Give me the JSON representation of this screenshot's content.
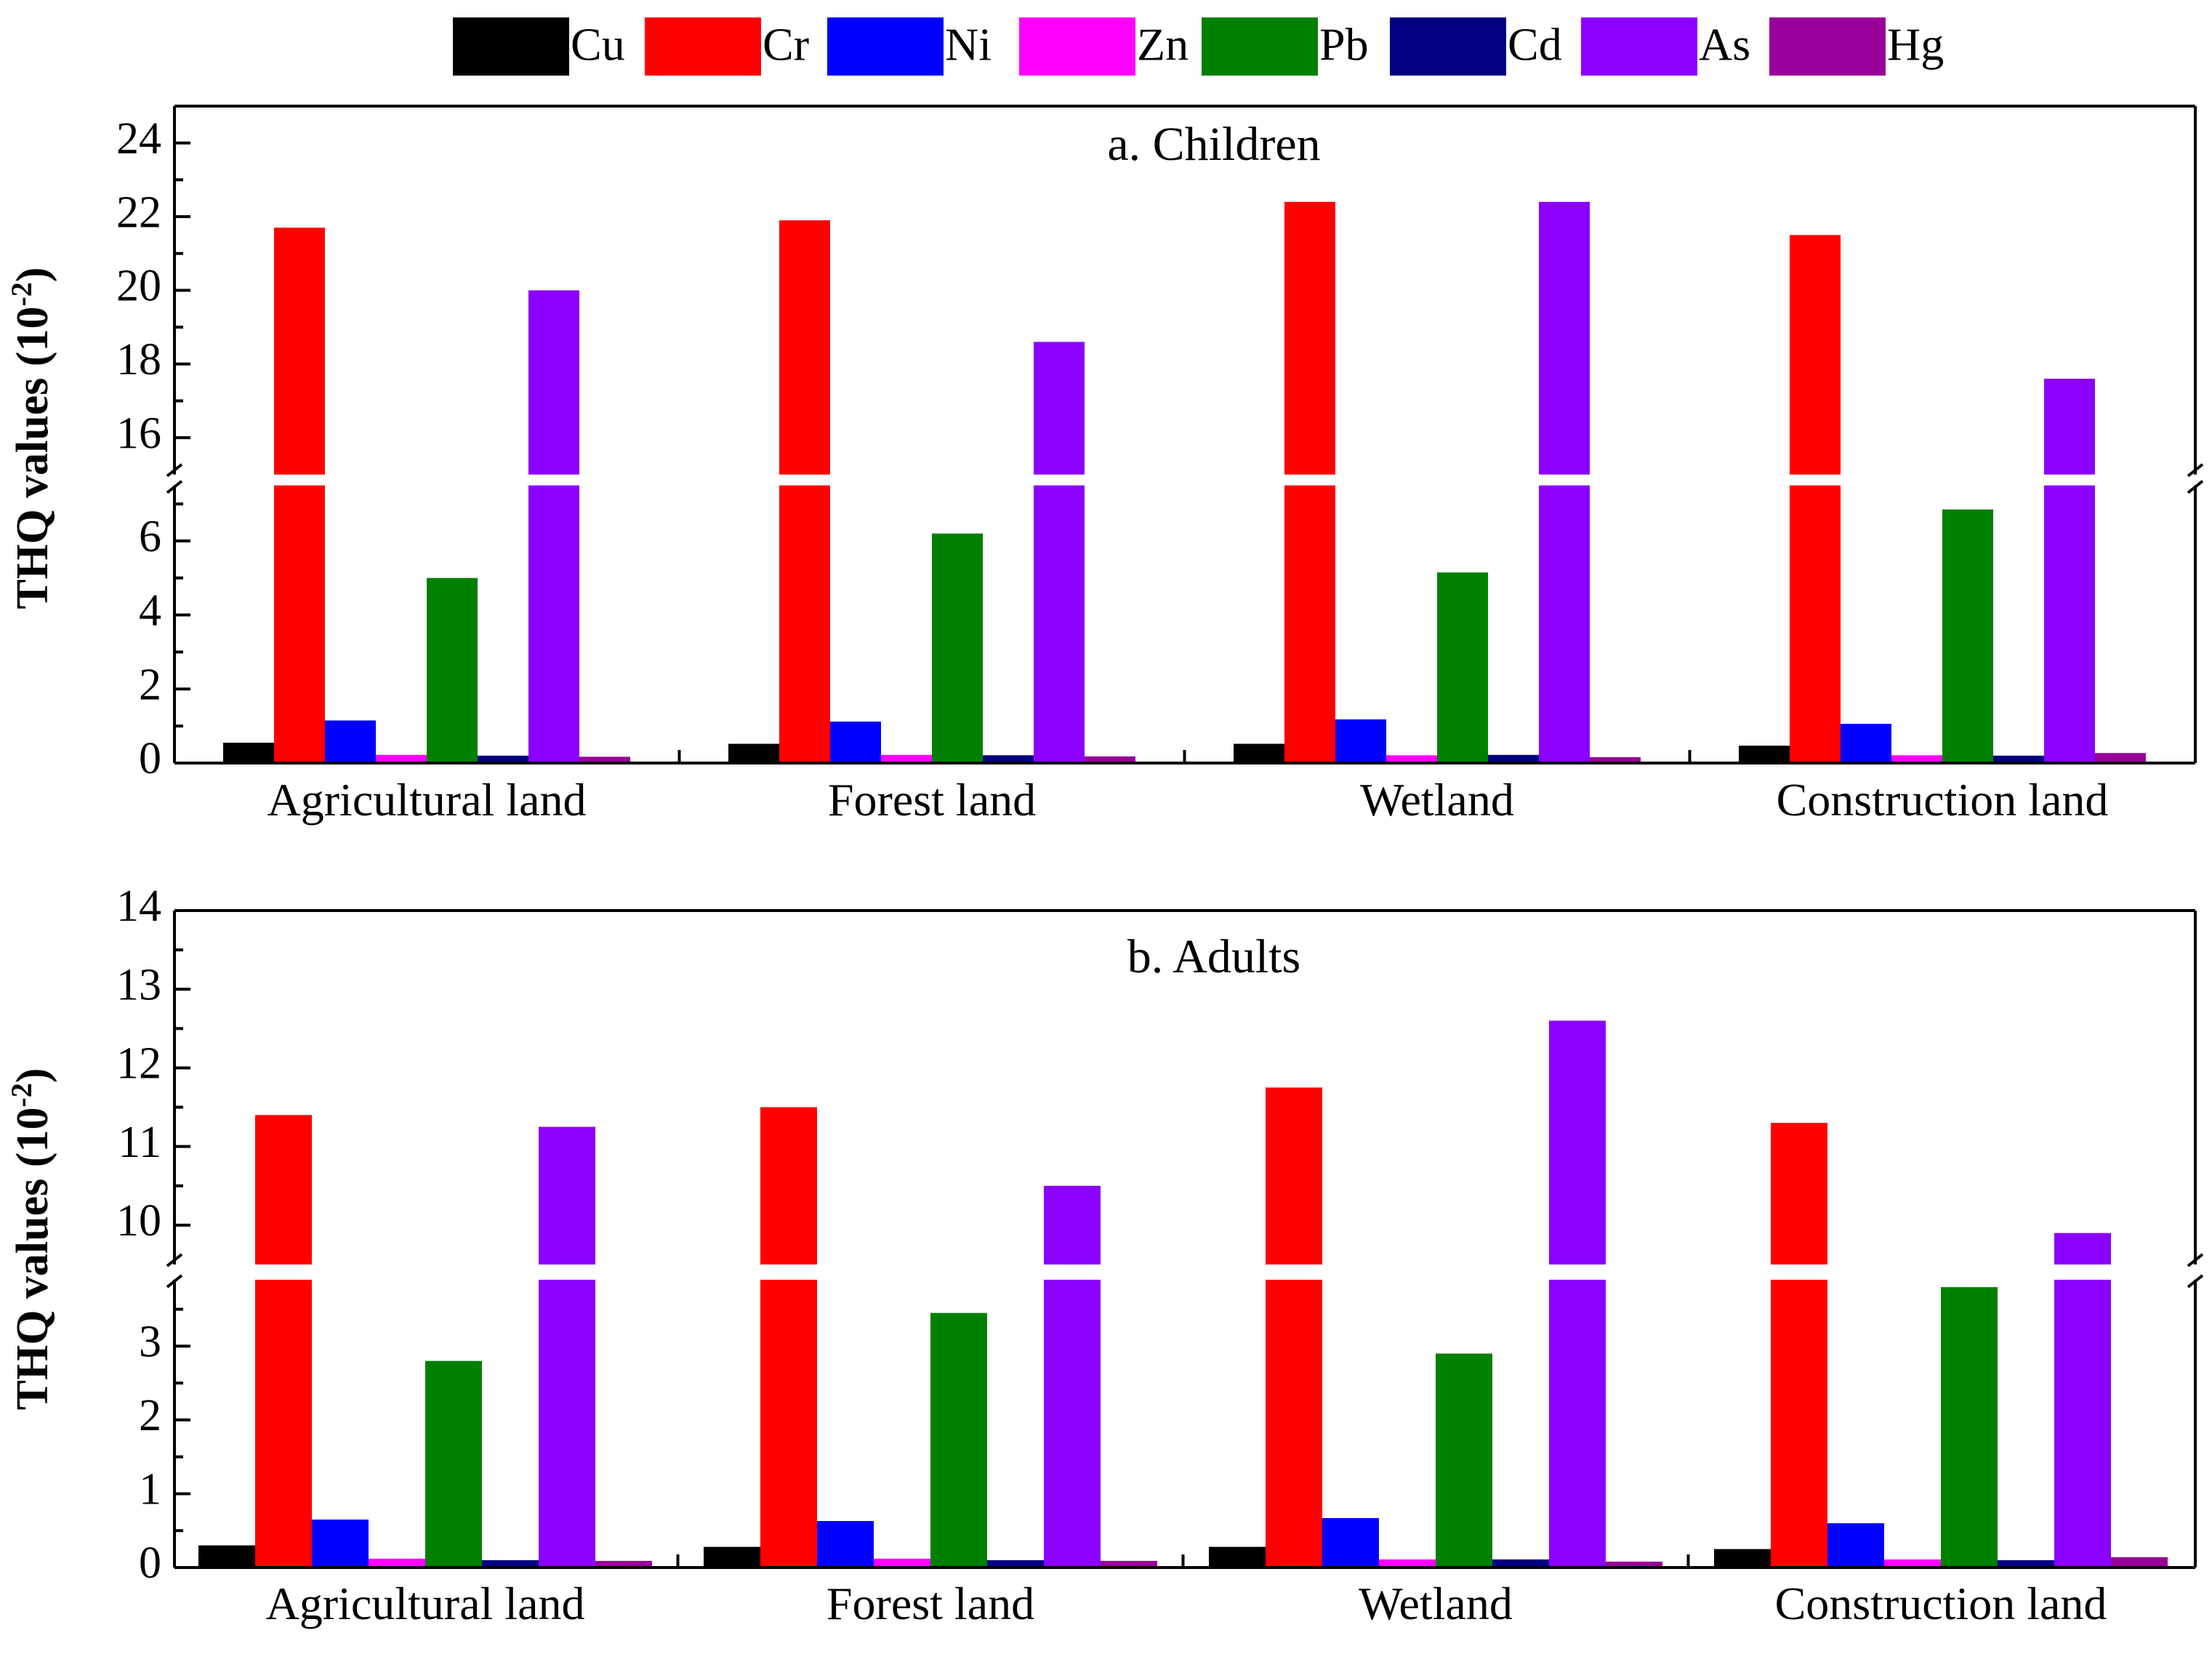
{
  "legend": {
    "entries": [
      {
        "name": "Cu",
        "color": "#000000"
      },
      {
        "name": "Cr",
        "color": "#ff0000"
      },
      {
        "name": "Ni",
        "color": "#0000ff"
      },
      {
        "name": "Zn",
        "color": "#ff00ff"
      },
      {
        "name": "Pb",
        "color": "#008000"
      },
      {
        "name": "Cd",
        "color": "#000080"
      },
      {
        "name": "As",
        "color": "#8b00ff"
      },
      {
        "name": "Hg",
        "color": "#990099"
      }
    ],
    "placement": "top-center"
  },
  "chart_data": [
    {
      "type": "bar",
      "title": "a. Children",
      "ylabel": "THQ values (10",
      "ylabel_sup": "-2",
      "ylabel_close": ")",
      "xlabel": "",
      "categories": [
        "Agricultural land",
        "Forest land",
        "Wetland",
        "Construction land"
      ],
      "axis_break": {
        "lower_range": [
          0,
          7.5
        ],
        "upper_range": [
          15,
          25
        ]
      },
      "lower_ticks": [
        "0",
        "2",
        "4",
        "6"
      ],
      "upper_ticks": [
        "16",
        "18",
        "20",
        "22",
        "24"
      ],
      "series": [
        {
          "name": "Cu",
          "values": [
            0.55,
            0.52,
            0.52,
            0.47
          ]
        },
        {
          "name": "Cr",
          "values": [
            21.7,
            21.9,
            22.4,
            21.5
          ]
        },
        {
          "name": "Ni",
          "values": [
            1.15,
            1.12,
            1.18,
            1.06
          ]
        },
        {
          "name": "Zn",
          "values": [
            0.22,
            0.22,
            0.21,
            0.21
          ]
        },
        {
          "name": "Pb",
          "values": [
            5.0,
            6.2,
            5.15,
            6.85
          ]
        },
        {
          "name": "Cd",
          "values": [
            0.2,
            0.21,
            0.22,
            0.2
          ]
        },
        {
          "name": "As",
          "values": [
            20.0,
            18.6,
            22.4,
            17.6
          ]
        },
        {
          "name": "Hg",
          "values": [
            0.17,
            0.18,
            0.16,
            0.27
          ]
        }
      ]
    },
    {
      "type": "bar",
      "title": "b. Adults",
      "ylabel": "THQ values (10",
      "ylabel_sup": "-2",
      "ylabel_close": ")",
      "xlabel": "",
      "categories": [
        "Agricultural land",
        "Forest land",
        "Wetland",
        "Construction land"
      ],
      "axis_break": {
        "lower_range": [
          0,
          3.9
        ],
        "upper_range": [
          9.5,
          14
        ]
      },
      "lower_ticks": [
        "0",
        "1",
        "2",
        "3"
      ],
      "upper_ticks": [
        "10",
        "11",
        "12",
        "13",
        "14"
      ],
      "series": [
        {
          "name": "Cu",
          "values": [
            0.3,
            0.28,
            0.28,
            0.25
          ]
        },
        {
          "name": "Cr",
          "values": [
            11.4,
            11.5,
            11.75,
            11.3
          ]
        },
        {
          "name": "Ni",
          "values": [
            0.65,
            0.63,
            0.67,
            0.6
          ]
        },
        {
          "name": "Zn",
          "values": [
            0.12,
            0.12,
            0.11,
            0.11
          ]
        },
        {
          "name": "Pb",
          "values": [
            2.8,
            3.45,
            2.9,
            3.8
          ]
        },
        {
          "name": "Cd",
          "values": [
            0.1,
            0.1,
            0.11,
            0.1
          ]
        },
        {
          "name": "As",
          "values": [
            11.25,
            10.5,
            12.6,
            9.9
          ]
        },
        {
          "name": "Hg",
          "values": [
            0.09,
            0.09,
            0.08,
            0.14
          ]
        }
      ]
    }
  ]
}
